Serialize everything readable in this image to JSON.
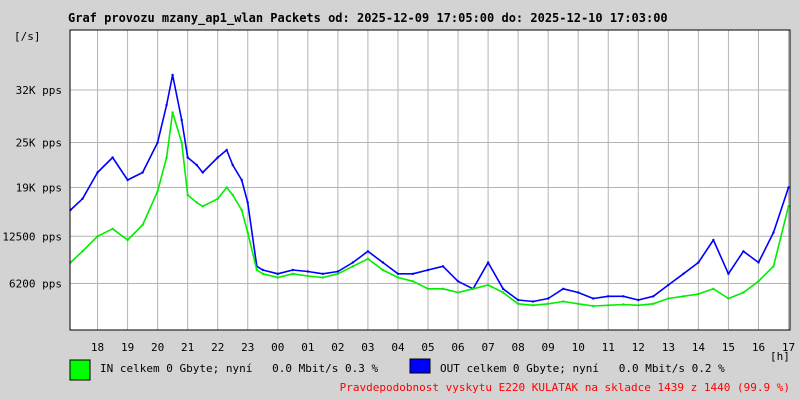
{
  "colors": {
    "background": "#d3d3d3",
    "plot_background": "#ffffff",
    "grid": "#b4b4b4",
    "in_series": "#00ee00",
    "out_series": "#0000ff",
    "legend_in_swatch": "#00ff00",
    "legend_out_swatch": "#0000ff",
    "availability_text": "#ff0000",
    "text": "#000000"
  },
  "header": {
    "title": "Graf provozu mzany_ap1_wlan Packets od: 2025-12-09 17:05:00 do: 2025-12-10 17:03:00"
  },
  "legend": {
    "in_label": "IN celkem 0 Gbyte; nyní   0.0 Mbit/s 0.3 %",
    "out_label": "OUT celkem 0 Gbyte; nyní   0.0 Mbit/s 0.2 %"
  },
  "footer": {
    "availability": "Pravdepodobnost vyskytu E220 KULATAK na skladce 1439 z 1440 (99.9 %)"
  },
  "chart_data": {
    "type": "line",
    "y_unit_label": "[/s]",
    "x_unit_label": "[h]",
    "ylim": [
      0,
      40000
    ],
    "grid": true,
    "y_ticks": [
      {
        "value": 6200,
        "label": "6200 pps"
      },
      {
        "value": 12500,
        "label": "12500 pps"
      },
      {
        "value": 19000,
        "label": "19K pps"
      },
      {
        "value": 25000,
        "label": "25K pps"
      },
      {
        "value": 32000,
        "label": "32K pps"
      }
    ],
    "x_ticks": [
      "18",
      "19",
      "20",
      "21",
      "22",
      "23",
      "00",
      "01",
      "02",
      "03",
      "04",
      "05",
      "06",
      "07",
      "08",
      "09",
      "10",
      "11",
      "12",
      "13",
      "14",
      "15",
      "16",
      "17"
    ],
    "x_hours": [
      17.1,
      17.5,
      18,
      18.5,
      19,
      19.5,
      20,
      20.3,
      20.5,
      20.8,
      21,
      21.3,
      21.5,
      22,
      22.3,
      22.5,
      22.8,
      23,
      23.3,
      23.5,
      24,
      24.5,
      25,
      25.5,
      26,
      26.5,
      27,
      27.5,
      28,
      28.5,
      29,
      29.5,
      30,
      30.5,
      31,
      31.5,
      32,
      32.5,
      33,
      33.5,
      34,
      34.5,
      35,
      35.5,
      36,
      36.5,
      37,
      37.5,
      38,
      38.5,
      39,
      39.5,
      40,
      40.5,
      41
    ],
    "series": [
      {
        "name": "IN",
        "values": [
          9000,
          10500,
          12500,
          13500,
          12000,
          14000,
          18500,
          23000,
          29000,
          25000,
          18000,
          17000,
          16500,
          17500,
          19000,
          18000,
          16000,
          13000,
          8000,
          7500,
          7000,
          7500,
          7200,
          7000,
          7500,
          8500,
          9500,
          8000,
          7000,
          6500,
          5500,
          5500,
          5000,
          5500,
          6000,
          5000,
          3500,
          3300,
          3500,
          3800,
          3500,
          3200,
          3300,
          3400,
          3300,
          3500,
          4200,
          4500,
          4800,
          5500,
          4200,
          5000,
          6500,
          8500,
          16500
        ]
      },
      {
        "name": "OUT",
        "values": [
          16000,
          17500,
          21000,
          23000,
          20000,
          21000,
          25000,
          30000,
          34000,
          28000,
          23000,
          22000,
          21000,
          23000,
          24000,
          22000,
          20000,
          17000,
          8500,
          8000,
          7500,
          8000,
          7800,
          7500,
          7800,
          9000,
          10500,
          9000,
          7500,
          7500,
          8000,
          8500,
          6500,
          5500,
          9000,
          5500,
          4000,
          3800,
          4200,
          5500,
          5000,
          4200,
          4500,
          4500,
          4000,
          4500,
          6000,
          7500,
          9000,
          12000,
          7500,
          10500,
          9000,
          13000,
          19000
        ]
      }
    ]
  }
}
